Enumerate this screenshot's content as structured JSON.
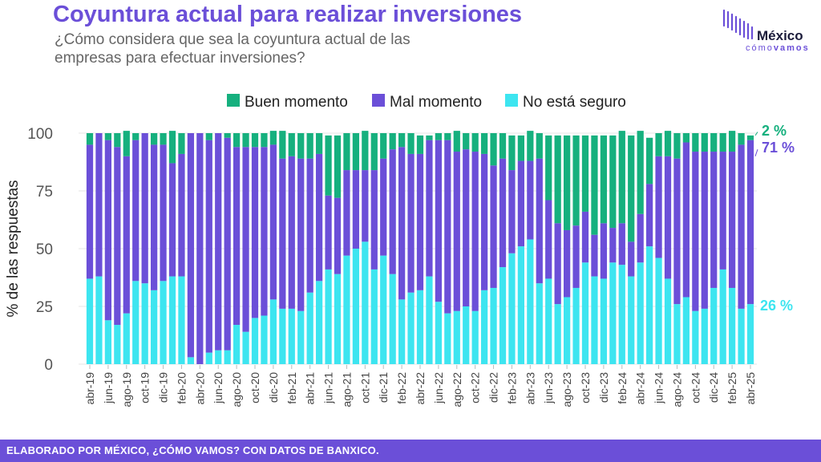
{
  "header": {
    "title": "Coyuntura actual para realizar inversiones",
    "subtitle": "¿Cómo considera que sea la coyuntura actual de las empresas para efectuar inversiones?"
  },
  "logo": {
    "word": "México",
    "sub_light": "cómo",
    "sub_bold": "vamos"
  },
  "footer": {
    "text": "ELABORADO POR MÉXICO, ¿CÓMO VAMOS? CON DATOS DE BANXICO."
  },
  "colors": {
    "buen": "#16b07e",
    "mal": "#6b4fd8",
    "nose": "#3de5f0",
    "accent": "#6b4fd8"
  },
  "chart_data": {
    "type": "bar",
    "stacked": true,
    "ylabel": "% de las respuestas",
    "ylim": [
      0,
      100
    ],
    "yticks": [
      0,
      25,
      50,
      75,
      100
    ],
    "grid": true,
    "legend_position": "top",
    "end_labels": {
      "buen": "2 %",
      "mal": "71 %",
      "nose": "26 %"
    },
    "x_ticks": [
      "abr-19",
      "jun-19",
      "ago-19",
      "oct-19",
      "dic-19",
      "feb-20",
      "abr-20",
      "jun-20",
      "ago-20",
      "oct-20",
      "dic-20",
      "feb-21",
      "abr-21",
      "jun-21",
      "ago-21",
      "oct-21",
      "dic-21",
      "feb-22",
      "abr-22",
      "jun-22",
      "ago-22",
      "oct-22",
      "dic-22",
      "feb-23",
      "abr-23",
      "jun-23",
      "ago-23",
      "oct-23",
      "dic-23",
      "feb-24",
      "abr-24",
      "jun-24",
      "ago-24",
      "oct-24",
      "dic-24",
      "feb-25",
      "abr-25"
    ],
    "categories": [
      "abr-19",
      "may-19",
      "jun-19",
      "jul-19",
      "ago-19",
      "sep-19",
      "oct-19",
      "nov-19",
      "dic-19",
      "ene-20",
      "feb-20",
      "mar-20",
      "abr-20",
      "may-20",
      "jun-20",
      "jul-20",
      "ago-20",
      "sep-20",
      "oct-20",
      "nov-20",
      "dic-20",
      "ene-21",
      "feb-21",
      "mar-21",
      "abr-21",
      "may-21",
      "jun-21",
      "jul-21",
      "ago-21",
      "sep-21",
      "oct-21",
      "nov-21",
      "dic-21",
      "ene-22",
      "feb-22",
      "mar-22",
      "abr-22",
      "may-22",
      "jun-22",
      "jul-22",
      "ago-22",
      "sep-22",
      "oct-22",
      "nov-22",
      "dic-22",
      "ene-23",
      "feb-23",
      "mar-23",
      "abr-23",
      "may-23",
      "jun-23",
      "jul-23",
      "ago-23",
      "sep-23",
      "oct-23",
      "nov-23",
      "dic-23",
      "ene-24",
      "feb-24",
      "mar-24",
      "abr-24",
      "may-24",
      "jun-24",
      "jul-24",
      "ago-24",
      "sep-24",
      "oct-24",
      "nov-24",
      "dic-24",
      "ene-25",
      "feb-25",
      "mar-25",
      "abr-25"
    ],
    "series": [
      {
        "name": "No está seguro",
        "key": "nose",
        "values": [
          37,
          38,
          19,
          17,
          22,
          36,
          35,
          32,
          36,
          38,
          38,
          3,
          0,
          5,
          6,
          6,
          17,
          14,
          20,
          21,
          28,
          24,
          24,
          23,
          31,
          36,
          41,
          39,
          47,
          50,
          53,
          41,
          47,
          39,
          28,
          31,
          32,
          38,
          27,
          22,
          23,
          25,
          23,
          32,
          33,
          42,
          48,
          51,
          54,
          35,
          37,
          26,
          29,
          33,
          44,
          38,
          37,
          44,
          43,
          38,
          44,
          51,
          46,
          37,
          26,
          29,
          23,
          24,
          33,
          41,
          33,
          24,
          26
        ]
      },
      {
        "name": "Mal momento",
        "key": "mal",
        "values": [
          58,
          62,
          78,
          77,
          68,
          61,
          65,
          63,
          59,
          49,
          53,
          97,
          100,
          92,
          94,
          92,
          77,
          80,
          74,
          73,
          67,
          65,
          66,
          66,
          58,
          55,
          32,
          33,
          37,
          34,
          31,
          43,
          42,
          54,
          66,
          60,
          59,
          59,
          70,
          75,
          69,
          68,
          69,
          59,
          53,
          47,
          36,
          37,
          34,
          54,
          34,
          35,
          29,
          27,
          22,
          18,
          24,
          15,
          18,
          15,
          21,
          27,
          44,
          53,
          63,
          67,
          69,
          68,
          59,
          51,
          59,
          71,
          71
        ]
      },
      {
        "name": "Buen momento",
        "key": "buen",
        "values": [
          5,
          0,
          3,
          6,
          11,
          3,
          0,
          5,
          5,
          14,
          9,
          0,
          0,
          3,
          0,
          2,
          6,
          6,
          6,
          6,
          6,
          12,
          10,
          11,
          11,
          9,
          26,
          27,
          16,
          16,
          17,
          16,
          11,
          7,
          6,
          9,
          8,
          2,
          3,
          3,
          9,
          7,
          8,
          9,
          14,
          11,
          15,
          11,
          13,
          11,
          28,
          38,
          41,
          39,
          33,
          43,
          38,
          40,
          40,
          46,
          36,
          20,
          10,
          11,
          11,
          4,
          8,
          8,
          8,
          8,
          9,
          5,
          2
        ]
      }
    ]
  }
}
